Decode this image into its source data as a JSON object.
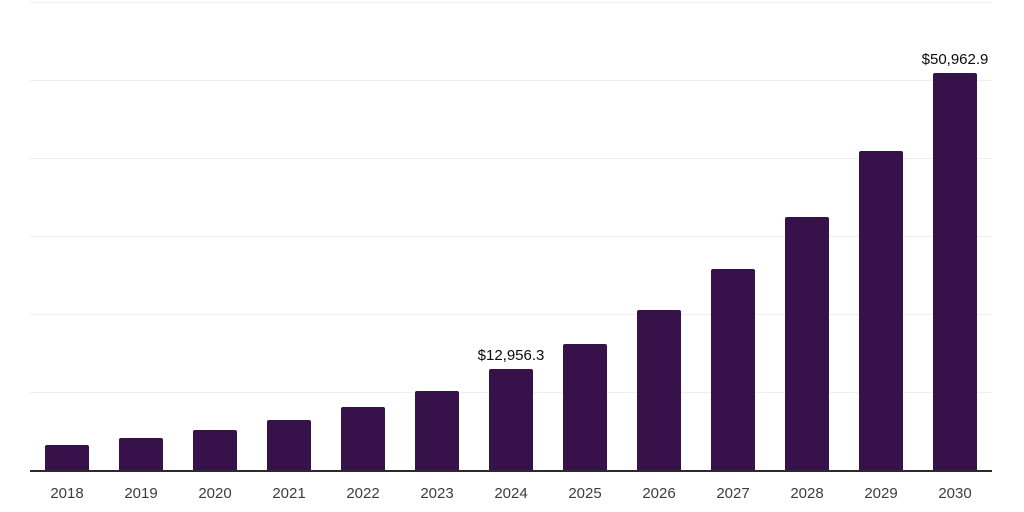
{
  "chart_data": {
    "type": "bar",
    "title": "",
    "xlabel": "",
    "ylabel": "",
    "categories": [
      "2018",
      "2019",
      "2020",
      "2021",
      "2022",
      "2023",
      "2024",
      "2025",
      "2026",
      "2027",
      "2028",
      "2029",
      "2030"
    ],
    "values": [
      3250,
      4150,
      5180,
      6450,
      8100,
      10150,
      12956.3,
      16150,
      20500,
      25750,
      32400,
      40850,
      50962.9
    ],
    "data_labels": {
      "2024": "$12,956.3",
      "2030": "$50,962.9"
    },
    "ylim": [
      0,
      60000
    ],
    "gridline_step": 10000,
    "grid": true,
    "y_axis_labels_visible": false,
    "legend": "none",
    "colors": {
      "bar": "#371149",
      "axis_line": "#2b2b2b",
      "gridline": "#efefef",
      "tick_label": "#3d3d3d",
      "data_label": "#0a0a0a",
      "background": "#ffffff"
    }
  }
}
